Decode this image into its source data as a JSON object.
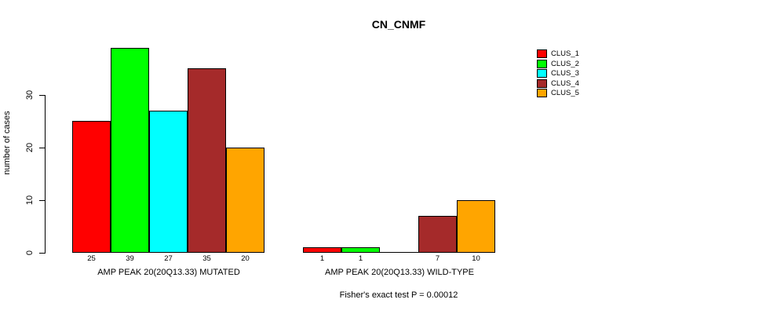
{
  "title": "CN_CNMF",
  "chart_data": {
    "type": "bar",
    "title": "CN_CNMF",
    "ylabel": "number of cases",
    "xlabel": "",
    "yticks": [
      0,
      10,
      20,
      30
    ],
    "ylim": [
      0,
      40
    ],
    "grid": false,
    "legend_position": "top-right",
    "series": [
      {
        "name": "CLUS_1",
        "color": "#FF0000"
      },
      {
        "name": "CLUS_2",
        "color": "#00FF00"
      },
      {
        "name": "CLUS_3",
        "color": "#00FFFF"
      },
      {
        "name": "CLUS_4",
        "color": "#A52A2A"
      },
      {
        "name": "CLUS_5",
        "color": "#FFA500"
      }
    ],
    "groups": [
      {
        "label": "AMP PEAK 20(20Q13.33) MUTATED",
        "values": [
          25,
          39,
          27,
          35,
          20
        ],
        "bar_labels": [
          "25",
          "39",
          "27",
          "35",
          "20"
        ]
      },
      {
        "label": "AMP PEAK 20(20Q13.33) WILD-TYPE",
        "values": [
          1,
          1,
          0,
          7,
          10
        ],
        "bar_labels": [
          "1",
          "1",
          "",
          "7",
          "10"
        ]
      }
    ],
    "footnote": "Fisher's exact test P = 0.00012"
  }
}
